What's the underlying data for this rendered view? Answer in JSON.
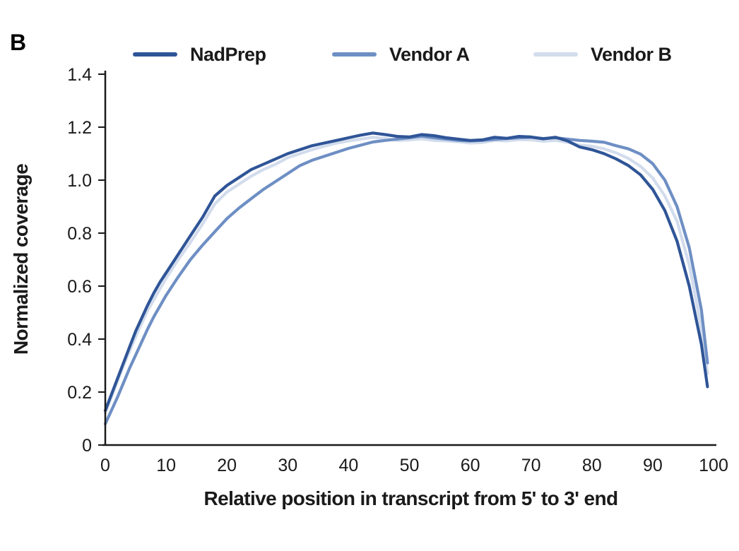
{
  "panel_label": "B",
  "colors": {
    "axis": "#1a1a1a",
    "text": "#1a1a1a",
    "nadprep": "#2F5597",
    "vendor_a": "#6E8FC4",
    "vendor_b": "#D2DCEC"
  },
  "chart_data": {
    "type": "line",
    "title": "",
    "xlabel": "Relative position in transcript from 5' to 3' end",
    "ylabel": "Normalized coverage",
    "xlim": [
      0,
      100
    ],
    "ylim": [
      0,
      1.4
    ],
    "grid": false,
    "legend_position": "top",
    "x_ticks": [
      0,
      10,
      20,
      30,
      40,
      50,
      60,
      70,
      80,
      90,
      100
    ],
    "y_ticks": [
      0,
      0.2,
      0.4,
      0.6,
      0.8,
      1.0,
      1.2,
      1.4
    ],
    "y_tick_labels": [
      "0",
      "0.2",
      "0.4",
      "0.6",
      "0.8",
      "1.0",
      "1.2",
      "1.4"
    ],
    "x": [
      0,
      1,
      2,
      3,
      4,
      5,
      6,
      7,
      8,
      9,
      10,
      12,
      14,
      16,
      18,
      20,
      22,
      24,
      26,
      28,
      30,
      32,
      34,
      36,
      38,
      40,
      42,
      44,
      46,
      48,
      50,
      52,
      54,
      56,
      58,
      60,
      62,
      64,
      66,
      68,
      70,
      72,
      74,
      76,
      78,
      80,
      82,
      84,
      86,
      88,
      90,
      92,
      94,
      96,
      98,
      99
    ],
    "series": [
      {
        "name": "NadPrep",
        "color": "#2F5597",
        "values": [
          0.13,
          0.19,
          0.25,
          0.31,
          0.37,
          0.43,
          0.48,
          0.53,
          0.575,
          0.615,
          0.65,
          0.72,
          0.79,
          0.86,
          0.94,
          0.98,
          1.01,
          1.04,
          1.06,
          1.08,
          1.1,
          1.115,
          1.13,
          1.14,
          1.15,
          1.16,
          1.17,
          1.178,
          1.172,
          1.165,
          1.163,
          1.172,
          1.168,
          1.16,
          1.155,
          1.15,
          1.152,
          1.162,
          1.158,
          1.165,
          1.163,
          1.156,
          1.162,
          1.148,
          1.125,
          1.115,
          1.1,
          1.08,
          1.055,
          1.02,
          0.965,
          0.885,
          0.77,
          0.6,
          0.38,
          0.22
        ]
      },
      {
        "name": "Vendor A",
        "color": "#6E8FC4",
        "values": [
          0.08,
          0.13,
          0.18,
          0.235,
          0.29,
          0.34,
          0.39,
          0.44,
          0.485,
          0.525,
          0.565,
          0.635,
          0.7,
          0.755,
          0.805,
          0.855,
          0.895,
          0.93,
          0.965,
          0.995,
          1.025,
          1.055,
          1.075,
          1.09,
          1.105,
          1.12,
          1.132,
          1.144,
          1.15,
          1.155,
          1.16,
          1.166,
          1.16,
          1.155,
          1.15,
          1.148,
          1.15,
          1.154,
          1.157,
          1.16,
          1.162,
          1.157,
          1.16,
          1.155,
          1.15,
          1.147,
          1.143,
          1.13,
          1.118,
          1.098,
          1.062,
          1.0,
          0.9,
          0.745,
          0.51,
          0.31
        ]
      },
      {
        "name": "Vendor B",
        "color": "#D2DCEC",
        "values": [
          0.12,
          0.18,
          0.24,
          0.3,
          0.355,
          0.41,
          0.46,
          0.51,
          0.55,
          0.59,
          0.63,
          0.7,
          0.765,
          0.835,
          0.91,
          0.955,
          0.985,
          1.015,
          1.04,
          1.06,
          1.085,
          1.1,
          1.115,
          1.128,
          1.14,
          1.148,
          1.155,
          1.162,
          1.157,
          1.15,
          1.152,
          1.156,
          1.15,
          1.148,
          1.145,
          1.14,
          1.142,
          1.15,
          1.148,
          1.153,
          1.152,
          1.147,
          1.15,
          1.143,
          1.132,
          1.128,
          1.118,
          1.103,
          1.082,
          1.052,
          1.008,
          0.94,
          0.845,
          0.68,
          0.44,
          0.27
        ]
      }
    ]
  }
}
